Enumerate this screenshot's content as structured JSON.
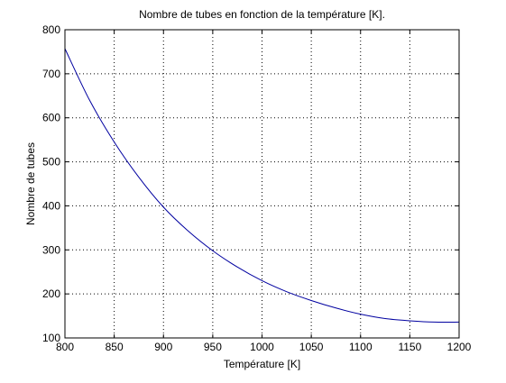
{
  "chart_data": {
    "type": "line",
    "title": "Nombre de tubes en fonction de la température [K].",
    "xlabel": "Température [K]",
    "ylabel": "Nombre de tubes",
    "xlim": [
      800,
      1200
    ],
    "ylim": [
      100,
      800
    ],
    "xticks": [
      800,
      850,
      900,
      950,
      1000,
      1050,
      1100,
      1150,
      1200
    ],
    "yticks": [
      100,
      200,
      300,
      400,
      500,
      600,
      700,
      800
    ],
    "xtick_labels": [
      "800",
      "850",
      "900",
      "950",
      "1000",
      "1050",
      "1100",
      "1150",
      "1200"
    ],
    "ytick_labels": [
      "100",
      "200",
      "300",
      "400",
      "500",
      "600",
      "700",
      "800"
    ],
    "grid": true,
    "grid_style": "dotted",
    "series": [
      {
        "color": "#0000a0",
        "x": [
          800,
          825,
          850,
          875,
          900,
          925,
          950,
          975,
          1000,
          1025,
          1050,
          1075,
          1100,
          1125,
          1150,
          1175,
          1200
        ],
        "y": [
          757,
          640,
          545,
          465,
          397,
          343,
          298,
          261,
          230,
          205,
          185,
          168,
          154,
          144,
          139,
          136,
          136
        ]
      }
    ]
  }
}
